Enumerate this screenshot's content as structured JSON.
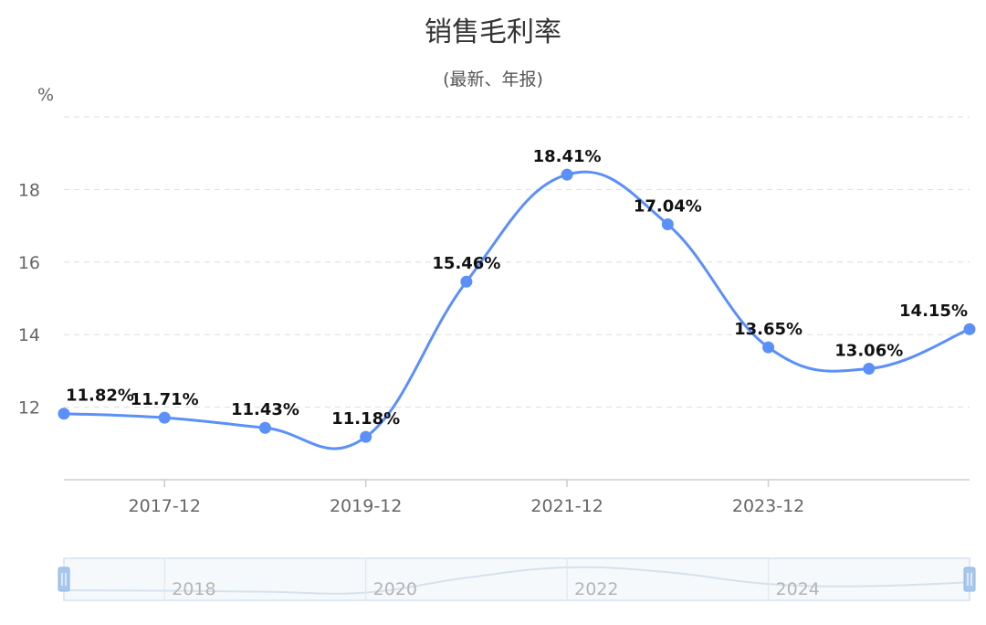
{
  "title": "销售毛利率",
  "subtitle": "(最新、年报)",
  "y_unit": "%",
  "chart_data": {
    "type": "line",
    "categories": [
      "2016-12",
      "2017-12",
      "2018-12",
      "2019-12",
      "2020-12",
      "2021-12",
      "2022-12",
      "2023-12",
      "2024-12",
      "2025-12"
    ],
    "values": [
      11.82,
      11.71,
      11.43,
      11.18,
      15.46,
      18.41,
      17.04,
      13.65,
      13.06,
      14.15
    ],
    "labels": [
      "11.82%",
      "11.71%",
      "11.43%",
      "11.18%",
      "15.46%",
      "18.41%",
      "17.04%",
      "13.65%",
      "13.06%",
      "14.15%"
    ],
    "x_tick_labels": [
      "2017-12",
      "2019-12",
      "2021-12",
      "2023-12"
    ],
    "y_ticks": [
      12,
      14,
      16,
      18
    ],
    "ylim": [
      10,
      20
    ],
    "grid": true,
    "color": "#5B8FF9"
  },
  "slider": {
    "labels": [
      "2018",
      "2020",
      "2022",
      "2024"
    ]
  }
}
